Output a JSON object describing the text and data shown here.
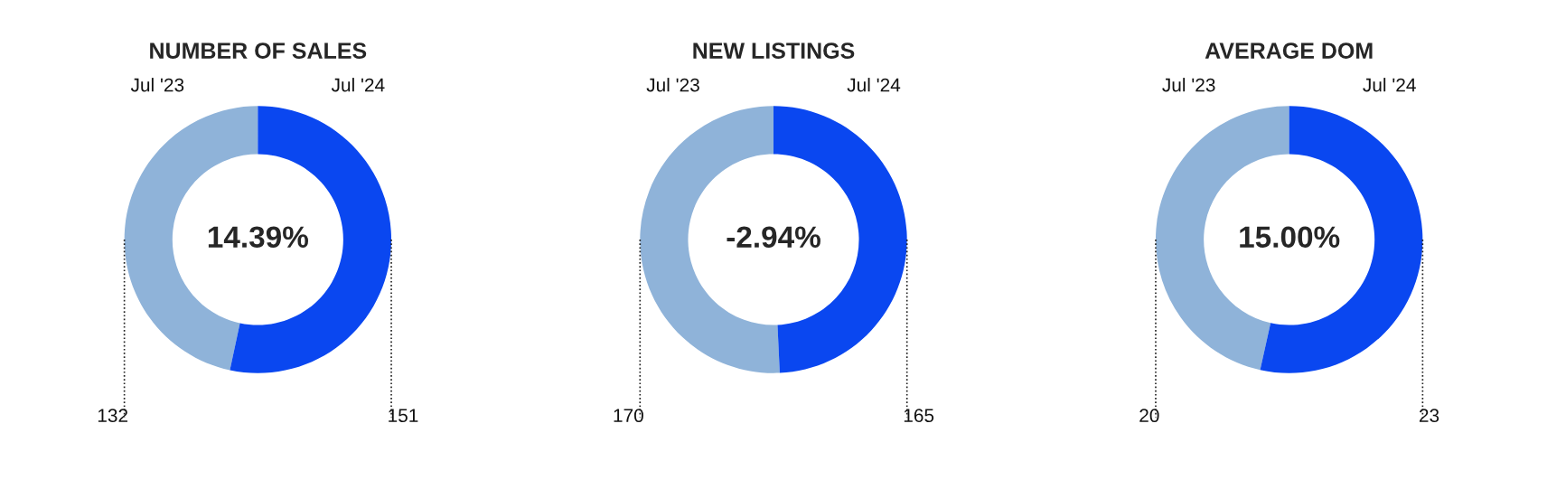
{
  "chart_data": [
    {
      "type": "donut",
      "title": "NUMBER OF SALES",
      "categories": [
        "Jul '23",
        "Jul '24"
      ],
      "values": [
        132,
        151
      ],
      "colors": [
        "#8fb3d9",
        "#0a47f0"
      ],
      "data_labels": true,
      "annotations": [
        "14.39%"
      ]
    },
    {
      "type": "donut",
      "title": "NEW LISTINGS",
      "categories": [
        "Jul '23",
        "Jul '24"
      ],
      "values": [
        170,
        165
      ],
      "colors": [
        "#8fb3d9",
        "#0a47f0"
      ],
      "data_labels": true,
      "annotations": [
        "-2.94%"
      ]
    },
    {
      "type": "donut",
      "title": "AVERAGE DOM",
      "categories": [
        "Jul '23",
        "Jul '24"
      ],
      "values": [
        20,
        23
      ],
      "colors": [
        "#8fb3d9",
        "#0a47f0"
      ],
      "data_labels": true,
      "annotations": [
        "15.00%"
      ]
    }
  ]
}
